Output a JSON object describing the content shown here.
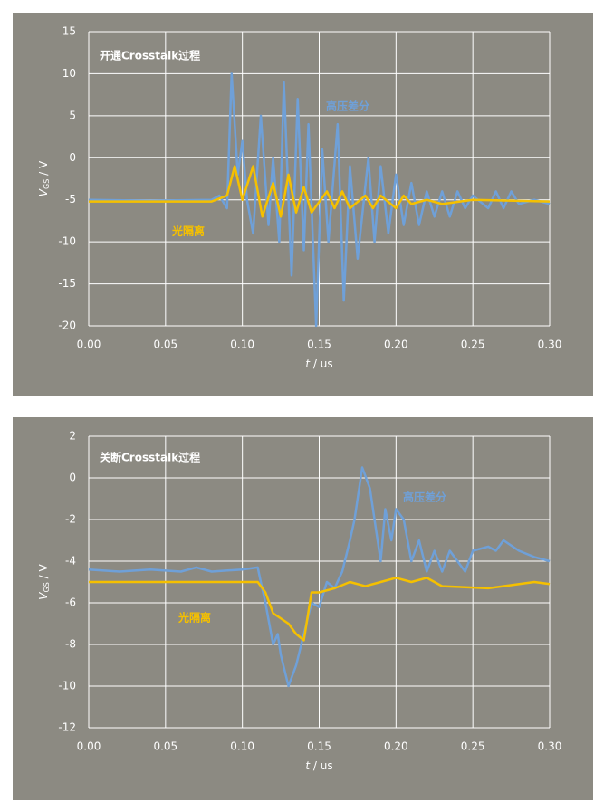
{
  "chart_data": [
    {
      "type": "line",
      "title": "开通Crosstalk过程",
      "ylabel": [
        "V",
        "GS",
        " / V"
      ],
      "xlabel": [
        "t",
        " / us"
      ],
      "xlim": [
        0,
        0.3
      ],
      "ylim": [
        -20,
        15
      ],
      "grid": true,
      "xticks": [
        {
          "value": 0,
          "label": "0.00"
        },
        {
          "value": 0.05,
          "label": "0.05"
        },
        {
          "value": 0.1,
          "label": "0.10"
        },
        {
          "value": 0.15,
          "label": "0.15"
        },
        {
          "value": 0.2,
          "label": "0.20"
        },
        {
          "value": 0.25,
          "label": "0.25"
        },
        {
          "value": 0.3,
          "label": "0.30"
        }
      ],
      "yticks": [
        15,
        10,
        5,
        0,
        -5,
        -10,
        -15,
        -20
      ],
      "series": [
        {
          "name": "高压差分",
          "color": "#6fa0d8",
          "x": [
            0,
            0.04,
            0.08,
            0.085,
            0.09,
            0.093,
            0.097,
            0.1,
            0.103,
            0.107,
            0.112,
            0.117,
            0.12,
            0.124,
            0.127,
            0.132,
            0.136,
            0.14,
            0.143,
            0.148,
            0.152,
            0.156,
            0.162,
            0.166,
            0.17,
            0.175,
            0.182,
            0.186,
            0.19,
            0.195,
            0.2,
            0.205,
            0.21,
            0.215,
            0.22,
            0.225,
            0.23,
            0.235,
            0.24,
            0.245,
            0.25,
            0.26,
            0.265,
            0.27,
            0.275,
            0.28,
            0.29,
            0.3
          ],
          "values": [
            -5,
            -5.1,
            -5,
            -4.5,
            -6,
            10,
            -2,
            2,
            -5,
            -9,
            5,
            -8,
            0,
            -10,
            9,
            -14,
            7,
            -11,
            4,
            -20,
            1,
            -10,
            4,
            -17,
            -1,
            -12,
            0,
            -10,
            -1,
            -9,
            -2,
            -8,
            -3,
            -8,
            -4,
            -7,
            -4,
            -7,
            -4,
            -6,
            -4.5,
            -6,
            -4,
            -6,
            -4,
            -5.5,
            -5,
            -5.5
          ]
        },
        {
          "name": "光隔离",
          "color": "#f5c000",
          "x": [
            0,
            0.04,
            0.08,
            0.09,
            0.095,
            0.1,
            0.107,
            0.113,
            0.12,
            0.125,
            0.13,
            0.135,
            0.14,
            0.145,
            0.155,
            0.16,
            0.165,
            0.17,
            0.18,
            0.185,
            0.19,
            0.2,
            0.205,
            0.21,
            0.22,
            0.23,
            0.25,
            0.3
          ],
          "values": [
            -5.2,
            -5.2,
            -5.2,
            -4.5,
            -1,
            -5,
            -1,
            -7,
            -3,
            -7,
            -2,
            -6.5,
            -3.5,
            -6.5,
            -4,
            -6,
            -4,
            -6,
            -4.5,
            -6,
            -4.5,
            -6,
            -4.5,
            -5.5,
            -5,
            -5.5,
            -5,
            -5.2
          ]
        }
      ]
    },
    {
      "type": "line",
      "title": "关断Crosstalk过程",
      "ylabel": [
        "V",
        "GS",
        " / V"
      ],
      "xlabel": [
        "t",
        " / us"
      ],
      "xlim": [
        0,
        0.3
      ],
      "ylim": [
        -12,
        2
      ],
      "grid": true,
      "xticks": [
        {
          "value": 0,
          "label": "0.00"
        },
        {
          "value": 0.05,
          "label": "0.05"
        },
        {
          "value": 0.1,
          "label": "0.10"
        },
        {
          "value": 0.15,
          "label": "0.15"
        },
        {
          "value": 0.2,
          "label": "0.20"
        },
        {
          "value": 0.25,
          "label": "0.25"
        },
        {
          "value": 0.3,
          "label": "0.30"
        }
      ],
      "yticks": [
        2,
        0,
        -2,
        -4,
        -6,
        -8,
        -10,
        -12
      ],
      "series": [
        {
          "name": "高压差分",
          "color": "#6fa0d8",
          "x": [
            0,
            0.02,
            0.04,
            0.06,
            0.07,
            0.08,
            0.1,
            0.11,
            0.112,
            0.115,
            0.12,
            0.123,
            0.125,
            0.13,
            0.135,
            0.14,
            0.145,
            0.15,
            0.155,
            0.16,
            0.165,
            0.17,
            0.173,
            0.178,
            0.183,
            0.187,
            0.19,
            0.193,
            0.197,
            0.2,
            0.205,
            0.21,
            0.215,
            0.22,
            0.225,
            0.23,
            0.235,
            0.24,
            0.245,
            0.25,
            0.26,
            0.265,
            0.27,
            0.28,
            0.29,
            0.3
          ],
          "values": [
            -4.4,
            -4.5,
            -4.4,
            -4.5,
            -4.3,
            -4.5,
            -4.4,
            -4.3,
            -5,
            -6,
            -8,
            -7.5,
            -8.5,
            -10,
            -9,
            -7.5,
            -6,
            -6.2,
            -5,
            -5.3,
            -4.5,
            -3,
            -2,
            0.5,
            -0.5,
            -2.5,
            -4,
            -1.5,
            -3,
            -1.5,
            -2,
            -4,
            -3,
            -4.5,
            -3.5,
            -4.5,
            -3.5,
            -4,
            -4.5,
            -3.5,
            -3.3,
            -3.5,
            -3,
            -3.5,
            -3.8,
            -4
          ]
        },
        {
          "name": "光隔离",
          "color": "#f5c000",
          "x": [
            0,
            0.05,
            0.11,
            0.115,
            0.12,
            0.13,
            0.135,
            0.14,
            0.145,
            0.15,
            0.16,
            0.17,
            0.18,
            0.19,
            0.2,
            0.21,
            0.22,
            0.23,
            0.26,
            0.29,
            0.3
          ],
          "values": [
            -5,
            -5,
            -5,
            -5.5,
            -6.5,
            -7,
            -7.5,
            -7.8,
            -5.5,
            -5.5,
            -5.3,
            -5,
            -5.2,
            -5,
            -4.8,
            -5,
            -4.8,
            -5.2,
            -5.3,
            -5,
            -5.1
          ]
        }
      ]
    }
  ]
}
